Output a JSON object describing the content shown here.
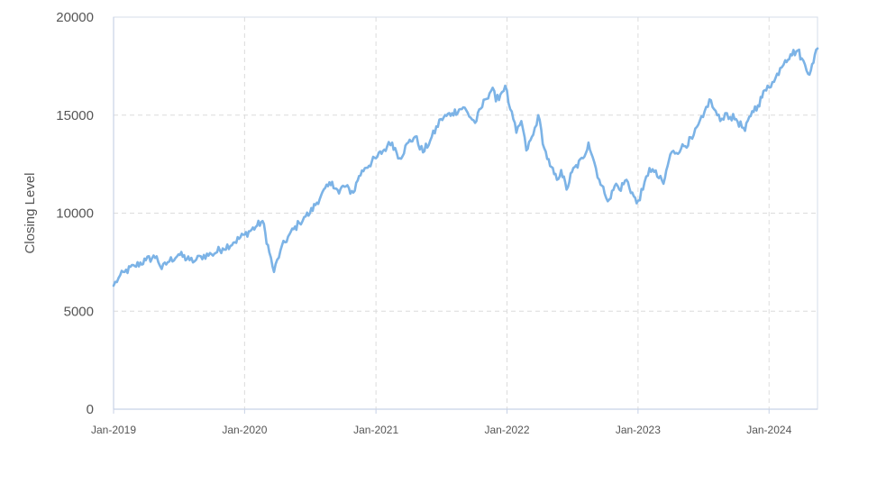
{
  "chart_data": {
    "type": "line",
    "ylabel": "Closing Level",
    "xlabel": "",
    "title": "",
    "ylim": [
      0,
      20000
    ],
    "xlim": [
      "2019-01-01",
      "2024-05-15"
    ],
    "y_ticks": [
      "0",
      "5000",
      "10000",
      "15000",
      "20000"
    ],
    "x_ticks": [
      {
        "label": "Jan-2019",
        "date": "2019-01-01"
      },
      {
        "label": "Jan-2020",
        "date": "2020-01-01"
      },
      {
        "label": "Jan-2021",
        "date": "2021-01-01"
      },
      {
        "label": "Jan-2022",
        "date": "2022-01-01"
      },
      {
        "label": "Jan-2023",
        "date": "2023-01-01"
      },
      {
        "label": "Jan-2024",
        "date": "2024-01-01"
      }
    ],
    "grid": true,
    "line_color": "#7cb3e6",
    "axis_color": "#c8d2e6",
    "series": [
      {
        "x": [
          "2019-01-01",
          "2019-01-15",
          "2019-02-01",
          "2019-03-01",
          "2019-04-01",
          "2019-05-01",
          "2019-05-15",
          "2019-06-01",
          "2019-07-01",
          "2019-08-01",
          "2019-08-15",
          "2019-09-01",
          "2019-10-01",
          "2019-11-01",
          "2019-12-01",
          "2020-01-01",
          "2020-02-01",
          "2020-02-20",
          "2020-03-10",
          "2020-03-23",
          "2020-04-10",
          "2020-05-01",
          "2020-06-01",
          "2020-06-15",
          "2020-07-01",
          "2020-08-01",
          "2020-09-01",
          "2020-09-20",
          "2020-10-01",
          "2020-10-30",
          "2020-11-15",
          "2020-12-01",
          "2021-01-01",
          "2021-02-01",
          "2021-02-15",
          "2021-03-08",
          "2021-04-01",
          "2021-04-20",
          "2021-05-12",
          "2021-06-01",
          "2021-07-01",
          "2021-08-01",
          "2021-09-01",
          "2021-10-04",
          "2021-11-01",
          "2021-11-22",
          "2021-12-01",
          "2021-12-27",
          "2022-01-10",
          "2022-01-27",
          "2022-02-10",
          "2022-02-24",
          "2022-03-15",
          "2022-03-29",
          "2022-04-15",
          "2022-05-01",
          "2022-05-20",
          "2022-06-01",
          "2022-06-16",
          "2022-07-01",
          "2022-08-01",
          "2022-08-16",
          "2022-09-01",
          "2022-09-15",
          "2022-09-30",
          "2022-10-13",
          "2022-11-01",
          "2022-11-10",
          "2022-11-30",
          "2022-12-28",
          "2023-01-15",
          "2023-02-02",
          "2023-02-15",
          "2023-03-13",
          "2023-04-01",
          "2023-05-01",
          "2023-06-01",
          "2023-07-01",
          "2023-07-19",
          "2023-08-01",
          "2023-08-18",
          "2023-09-01",
          "2023-09-15",
          "2023-10-01",
          "2023-10-26",
          "2023-11-15",
          "2023-12-01",
          "2023-12-28",
          "2024-01-15",
          "2024-02-01",
          "2024-02-15",
          "2024-03-01",
          "2024-03-21",
          "2024-04-01",
          "2024-04-19",
          "2024-04-30",
          "2024-05-15"
        ],
        "y": [
          6300,
          6700,
          7000,
          7300,
          7600,
          7800,
          7150,
          7500,
          7900,
          7600,
          7550,
          7800,
          7900,
          8200,
          8500,
          8900,
          9300,
          9600,
          8000,
          7000,
          8100,
          8800,
          9500,
          9800,
          10000,
          10900,
          11600,
          11000,
          11400,
          11050,
          11900,
          12300,
          12800,
          13400,
          13600,
          12800,
          13600,
          13900,
          13100,
          13700,
          14800,
          15100,
          15400,
          14600,
          15800,
          16400,
          15700,
          16500,
          15300,
          14100,
          14700,
          13200,
          14000,
          15000,
          13300,
          12400,
          11700,
          12200,
          11200,
          12100,
          12800,
          13600,
          12600,
          11700,
          11000,
          10700,
          11500,
          11200,
          11700,
          10500,
          11200,
          12300,
          12100,
          11500,
          13000,
          13300,
          13800,
          14900,
          15800,
          15300,
          14700,
          15100,
          14900,
          14800,
          14200,
          15200,
          15500,
          16500,
          16700,
          17400,
          17800,
          18100,
          18300,
          17900,
          17100,
          17600,
          18400
        ]
      }
    ]
  }
}
